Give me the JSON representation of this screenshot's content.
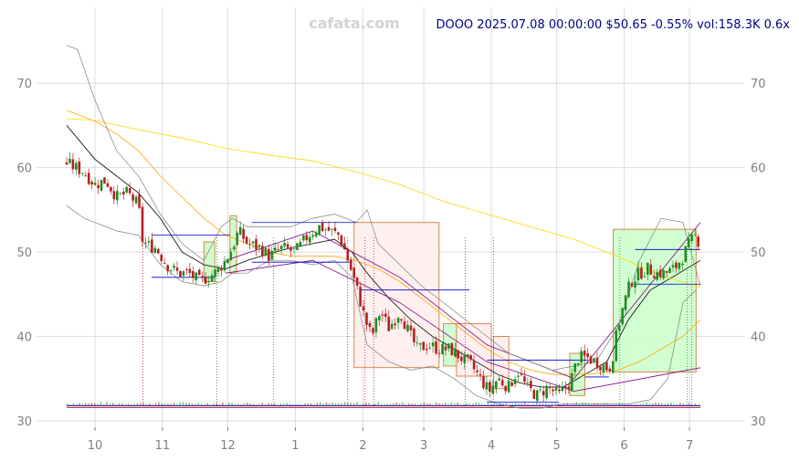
{
  "watermark": "cafata.com",
  "chart_data": {
    "type": "candlestick",
    "title": "DOOO 2025.07.08 00:00:00 $50.65 -0.55% vol:158.3K 0.6x",
    "ylim": [
      30,
      79
    ],
    "y_ticks": [
      30,
      40,
      50,
      60,
      70
    ],
    "x_range": [
      -30,
      280
    ],
    "x_ticks": [
      {
        "label": "10",
        "day": 0
      },
      {
        "label": "11",
        "day": 31
      },
      {
        "label": "12",
        "day": 61
      },
      {
        "label": "1",
        "day": 92
      },
      {
        "label": "2",
        "day": 123
      },
      {
        "label": "3",
        "day": 151
      },
      {
        "label": "4",
        "day": 182
      },
      {
        "label": "5",
        "day": 212
      },
      {
        "label": "6",
        "day": 243
      },
      {
        "label": "7",
        "day": 273
      }
    ],
    "grid": true,
    "price_path": [
      [
        -13,
        60.5
      ],
      [
        -5,
        59.5
      ],
      [
        0,
        58
      ],
      [
        5,
        58.5
      ],
      [
        10,
        56.5
      ],
      [
        15,
        57
      ],
      [
        20,
        55.5
      ],
      [
        22,
        51
      ],
      [
        28,
        50.5
      ],
      [
        33,
        48.5
      ],
      [
        38,
        47.5
      ],
      [
        43,
        47.5
      ],
      [
        48,
        46.5
      ],
      [
        55,
        47.5
      ],
      [
        60,
        49
      ],
      [
        63,
        50.5
      ],
      [
        66,
        52.5
      ],
      [
        70,
        51
      ],
      [
        76,
        50.5
      ],
      [
        80,
        49.5
      ],
      [
        86,
        50.5
      ],
      [
        92,
        50
      ],
      [
        98,
        52
      ],
      [
        103,
        53
      ],
      [
        108,
        52.5
      ],
      [
        112,
        52
      ],
      [
        115,
        50
      ],
      [
        118,
        47.5
      ],
      [
        121,
        45
      ],
      [
        124,
        42
      ],
      [
        127,
        40
      ],
      [
        131,
        43
      ],
      [
        135,
        41
      ],
      [
        140,
        43
      ],
      [
        144,
        40.5
      ],
      [
        148,
        38.5
      ],
      [
        153,
        39
      ],
      [
        158,
        38.5
      ],
      [
        163,
        38.5
      ],
      [
        168,
        37.5
      ],
      [
        173,
        36.5
      ],
      [
        177,
        35
      ],
      [
        181,
        33.5
      ],
      [
        185,
        35
      ],
      [
        190,
        34
      ],
      [
        194,
        36
      ],
      [
        198,
        34
      ],
      [
        203,
        33
      ],
      [
        208,
        34
      ],
      [
        213,
        33
      ],
      [
        218,
        34.5
      ],
      [
        222,
        37.5
      ],
      [
        226,
        37.5
      ],
      [
        230,
        37
      ],
      [
        234,
        36.5
      ],
      [
        236,
        36
      ],
      [
        238,
        38
      ],
      [
        240,
        41
      ],
      [
        243,
        44
      ],
      [
        246,
        46.5
      ],
      [
        250,
        47.5
      ],
      [
        254,
        48
      ],
      [
        258,
        47.5
      ],
      [
        262,
        47.5
      ],
      [
        266,
        48
      ],
      [
        270,
        49.5
      ],
      [
        273,
        51
      ],
      [
        276,
        52
      ],
      [
        278,
        50.65
      ]
    ],
    "series": [
      {
        "color": "#000000",
        "values": [
          [
            -13,
            65
          ],
          [
            0,
            61
          ],
          [
            10,
            59
          ],
          [
            20,
            57
          ],
          [
            30,
            54
          ],
          [
            40,
            50
          ],
          [
            50,
            48.5
          ],
          [
            60,
            48
          ],
          [
            70,
            49
          ],
          [
            80,
            49.8
          ],
          [
            90,
            50.5
          ],
          [
            100,
            51
          ],
          [
            110,
            51.5
          ],
          [
            118,
            50
          ],
          [
            125,
            47.5
          ],
          [
            135,
            44.5
          ],
          [
            145,
            42
          ],
          [
            155,
            40
          ],
          [
            165,
            38.5
          ],
          [
            175,
            37
          ],
          [
            185,
            35.5
          ],
          [
            195,
            34.5
          ],
          [
            205,
            34
          ],
          [
            215,
            34
          ],
          [
            225,
            35.5
          ],
          [
            235,
            37
          ],
          [
            245,
            42
          ],
          [
            255,
            45.5
          ],
          [
            265,
            47
          ],
          [
            278,
            49
          ]
        ]
      },
      {
        "color": "#ffa500",
        "values": [
          [
            -13,
            66.8
          ],
          [
            0,
            65.5
          ],
          [
            10,
            64
          ],
          [
            20,
            62
          ],
          [
            30,
            59
          ],
          [
            40,
            56.5
          ],
          [
            50,
            54
          ],
          [
            60,
            52
          ],
          [
            70,
            51
          ],
          [
            80,
            50
          ],
          [
            90,
            49.5
          ],
          [
            100,
            49.5
          ],
          [
            110,
            49.5
          ],
          [
            120,
            49
          ],
          [
            130,
            48
          ],
          [
            140,
            46.5
          ],
          [
            150,
            44.5
          ],
          [
            160,
            42.5
          ],
          [
            170,
            40.5
          ],
          [
            180,
            38.5
          ],
          [
            190,
            37
          ],
          [
            200,
            36
          ],
          [
            210,
            35.5
          ],
          [
            220,
            35.5
          ],
          [
            230,
            35.6
          ],
          [
            240,
            36
          ],
          [
            250,
            37
          ],
          [
            260,
            38.5
          ],
          [
            270,
            40
          ],
          [
            278,
            42
          ]
        ]
      },
      {
        "color": "#ffd700",
        "values": [
          [
            -13,
            65.8
          ],
          [
            0,
            65.6
          ],
          [
            20,
            64.5
          ],
          [
            40,
            63.5
          ],
          [
            60,
            62.3
          ],
          [
            80,
            61.5
          ],
          [
            100,
            60.8
          ],
          [
            120,
            59.5
          ],
          [
            140,
            58
          ],
          [
            160,
            56
          ],
          [
            180,
            54.5
          ],
          [
            200,
            53
          ],
          [
            220,
            51.5
          ],
          [
            240,
            49.5
          ],
          [
            260,
            47.2
          ],
          [
            278,
            45.8
          ]
        ]
      },
      {
        "color": "#800080",
        "values": [
          [
            60,
            47.5
          ],
          [
            100,
            49
          ],
          [
            140,
            44
          ],
          [
            180,
            37
          ],
          [
            220,
            33.5
          ],
          [
            278,
            36.3
          ]
        ]
      },
      {
        "color": "#800080",
        "values": [
          [
            60,
            49
          ],
          [
            100,
            52.5
          ],
          [
            140,
            47
          ],
          [
            180,
            39
          ],
          [
            220,
            35
          ],
          [
            278,
            53.5
          ]
        ]
      }
    ],
    "bollinger": [
      {
        "color": "#808080",
        "values": [
          [
            -13,
            74.5
          ],
          [
            -8,
            74
          ],
          [
            0,
            68
          ],
          [
            10,
            62
          ],
          [
            20,
            59
          ],
          [
            30,
            54.5
          ],
          [
            40,
            51
          ],
          [
            50,
            49
          ],
          [
            58,
            53
          ],
          [
            63,
            54
          ],
          [
            70,
            53
          ],
          [
            80,
            53
          ],
          [
            90,
            53
          ],
          [
            100,
            54
          ],
          [
            110,
            54.5
          ],
          [
            115,
            54
          ],
          [
            120,
            53.5
          ],
          [
            125,
            55
          ],
          [
            130,
            51
          ],
          [
            140,
            48.5
          ],
          [
            150,
            46
          ],
          [
            160,
            44
          ],
          [
            170,
            42
          ],
          [
            180,
            40
          ],
          [
            190,
            38
          ],
          [
            200,
            37
          ],
          [
            210,
            36
          ],
          [
            220,
            36.5
          ],
          [
            230,
            37
          ],
          [
            240,
            41
          ],
          [
            250,
            49
          ],
          [
            260,
            54
          ],
          [
            270,
            53.5
          ],
          [
            278,
            46
          ]
        ]
      },
      {
        "color": "#808080",
        "values": [
          [
            -13,
            55.5
          ],
          [
            -5,
            54
          ],
          [
            0,
            53.5
          ],
          [
            10,
            52.5
          ],
          [
            20,
            52
          ],
          [
            30,
            48.5
          ],
          [
            40,
            46.5
          ],
          [
            50,
            46
          ],
          [
            58,
            46.5
          ],
          [
            63,
            47.5
          ],
          [
            70,
            47.5
          ],
          [
            80,
            49
          ],
          [
            90,
            49
          ],
          [
            100,
            48.5
          ],
          [
            110,
            49
          ],
          [
            118,
            47
          ],
          [
            125,
            39
          ],
          [
            135,
            37
          ],
          [
            145,
            36
          ],
          [
            155,
            36.5
          ],
          [
            165,
            35
          ],
          [
            175,
            33
          ],
          [
            185,
            32
          ],
          [
            195,
            31.5
          ],
          [
            205,
            31.5
          ],
          [
            215,
            32
          ],
          [
            225,
            32
          ],
          [
            235,
            32
          ],
          [
            245,
            32
          ],
          [
            255,
            32.5
          ],
          [
            263,
            35
          ],
          [
            270,
            44
          ],
          [
            276,
            45.5
          ]
        ]
      }
    ],
    "boxes": [
      {
        "kind": "down",
        "x0": 119,
        "x1": 158,
        "y0": 36.3,
        "y1": 53.5
      },
      {
        "kind": "up",
        "x0": 160,
        "x1": 166,
        "y0": 36.5,
        "y1": 41.5
      },
      {
        "kind": "down",
        "x0": 166,
        "x1": 182,
        "y0": 35.3,
        "y1": 41.5
      },
      {
        "kind": "down",
        "x0": 183,
        "x1": 190,
        "y0": 33.8,
        "y1": 40
      },
      {
        "kind": "up",
        "x0": 50,
        "x1": 55,
        "y0": 46.5,
        "y1": 51.2
      },
      {
        "kind": "up",
        "x0": 62,
        "x1": 65,
        "y0": 47.5,
        "y1": 54.3
      },
      {
        "kind": "up",
        "x0": 218,
        "x1": 225,
        "y0": 33,
        "y1": 38
      },
      {
        "kind": "up",
        "x0": 238,
        "x1": 276,
        "y0": 35.8,
        "y1": 52.7
      }
    ],
    "levels": [
      {
        "color": "#0000cd",
        "x0": 26,
        "x1": 62,
        "y": 52
      },
      {
        "color": "#0000cd",
        "x0": 26,
        "x1": 55,
        "y": 47
      },
      {
        "color": "#0000cd",
        "x0": 72,
        "x1": 120,
        "y": 53.5
      },
      {
        "color": "#0000cd",
        "x0": 72,
        "x1": 118,
        "y": 48.8
      },
      {
        "color": "#0000cd",
        "x0": 122,
        "x1": 172,
        "y": 45.5
      },
      {
        "color": "#0000cd",
        "x0": 180,
        "x1": 226,
        "y": 37.2
      },
      {
        "color": "#0000cd",
        "x0": 180,
        "x1": 213,
        "y": 32.2
      },
      {
        "color": "#0000cd",
        "x0": 225,
        "x1": 236,
        "y": 35.2
      },
      {
        "color": "#0000cd",
        "x0": 248,
        "x1": 278,
        "y": 50.3
      },
      {
        "color": "#0000cd",
        "x0": 248,
        "x1": 278,
        "y": 46.2
      }
    ],
    "signals": [
      {
        "color": "#b22222",
        "x": 22
      },
      {
        "color": "#228b22",
        "x": 56
      },
      {
        "color": "#228b22",
        "x": 82
      },
      {
        "color": "#b22222",
        "x": 116
      },
      {
        "color": "#b22222",
        "x": 124
      },
      {
        "color": "#b22222",
        "x": 128
      },
      {
        "color": "#b22222",
        "x": 170
      },
      {
        "color": "#228b22",
        "x": 183
      },
      {
        "color": "#228b22",
        "x": 241
      },
      {
        "color": "#228b22",
        "x": 272
      },
      {
        "color": "#228b22",
        "x": 274
      }
    ],
    "volume_baseline": 31.8
  }
}
